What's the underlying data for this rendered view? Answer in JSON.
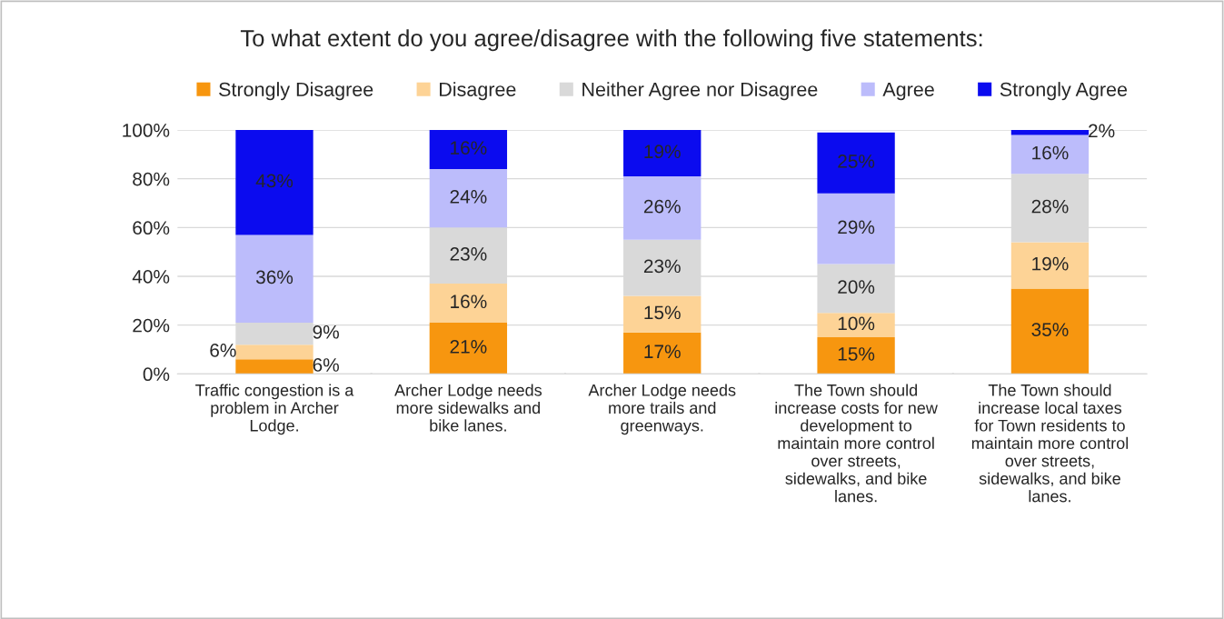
{
  "chart_data": {
    "type": "bar",
    "stacked": true,
    "title": "To what extent do you agree/disagree with the following five statements:",
    "categories": [
      "Traffic congestion is a\nproblem in Archer\nLodge.",
      "Archer Lodge needs\nmore sidewalks and\nbike lanes.",
      "Archer Lodge needs\nmore trails and\ngreenways.",
      "The Town should\nincrease costs for new\ndevelopment to\nmaintain more control\nover streets,\nsidewalks, and bike\nlanes.",
      "The Town should\nincrease local taxes\nfor Town residents to\nmaintain more control\nover streets,\nsidewalks, and bike\nlanes."
    ],
    "series": [
      {
        "name": "Strongly Disagree",
        "color": "#f7960f",
        "values": [
          6,
          21,
          17,
          15,
          35
        ],
        "value_labels": [
          "6%",
          "21%",
          "17%",
          "15%",
          "35%"
        ]
      },
      {
        "name": "Disagree",
        "color": "#fdd396",
        "values": [
          6,
          16,
          15,
          10,
          19
        ],
        "value_labels": [
          "6%",
          "16%",
          "15%",
          "10%",
          "19%"
        ]
      },
      {
        "name": "Neither Agree nor Disagree",
        "color": "#d9d9d9",
        "values": [
          9,
          23,
          23,
          20,
          28
        ],
        "value_labels": [
          "9%",
          "23%",
          "23%",
          "20%",
          "28%"
        ]
      },
      {
        "name": "Agree",
        "color": "#bcbcfb",
        "values": [
          36,
          24,
          26,
          29,
          16
        ],
        "value_labels": [
          "36%",
          "24%",
          "26%",
          "29%",
          "16%"
        ]
      },
      {
        "name": "Strongly Agree",
        "color": "#0b0bef",
        "values": [
          43,
          16,
          19,
          25,
          2
        ],
        "value_labels": [
          "43%",
          "16%",
          "19%",
          "25%",
          "2%"
        ]
      }
    ],
    "ylim": [
      0,
      100
    ],
    "yticks": [
      {
        "value": 0,
        "label": "0%"
      },
      {
        "value": 20,
        "label": "20%"
      },
      {
        "value": 40,
        "label": "40%"
      },
      {
        "value": 60,
        "label": "60%"
      },
      {
        "value": 80,
        "label": "80%"
      },
      {
        "value": 100,
        "label": "100%"
      }
    ],
    "grid": "y",
    "legend": "top"
  }
}
